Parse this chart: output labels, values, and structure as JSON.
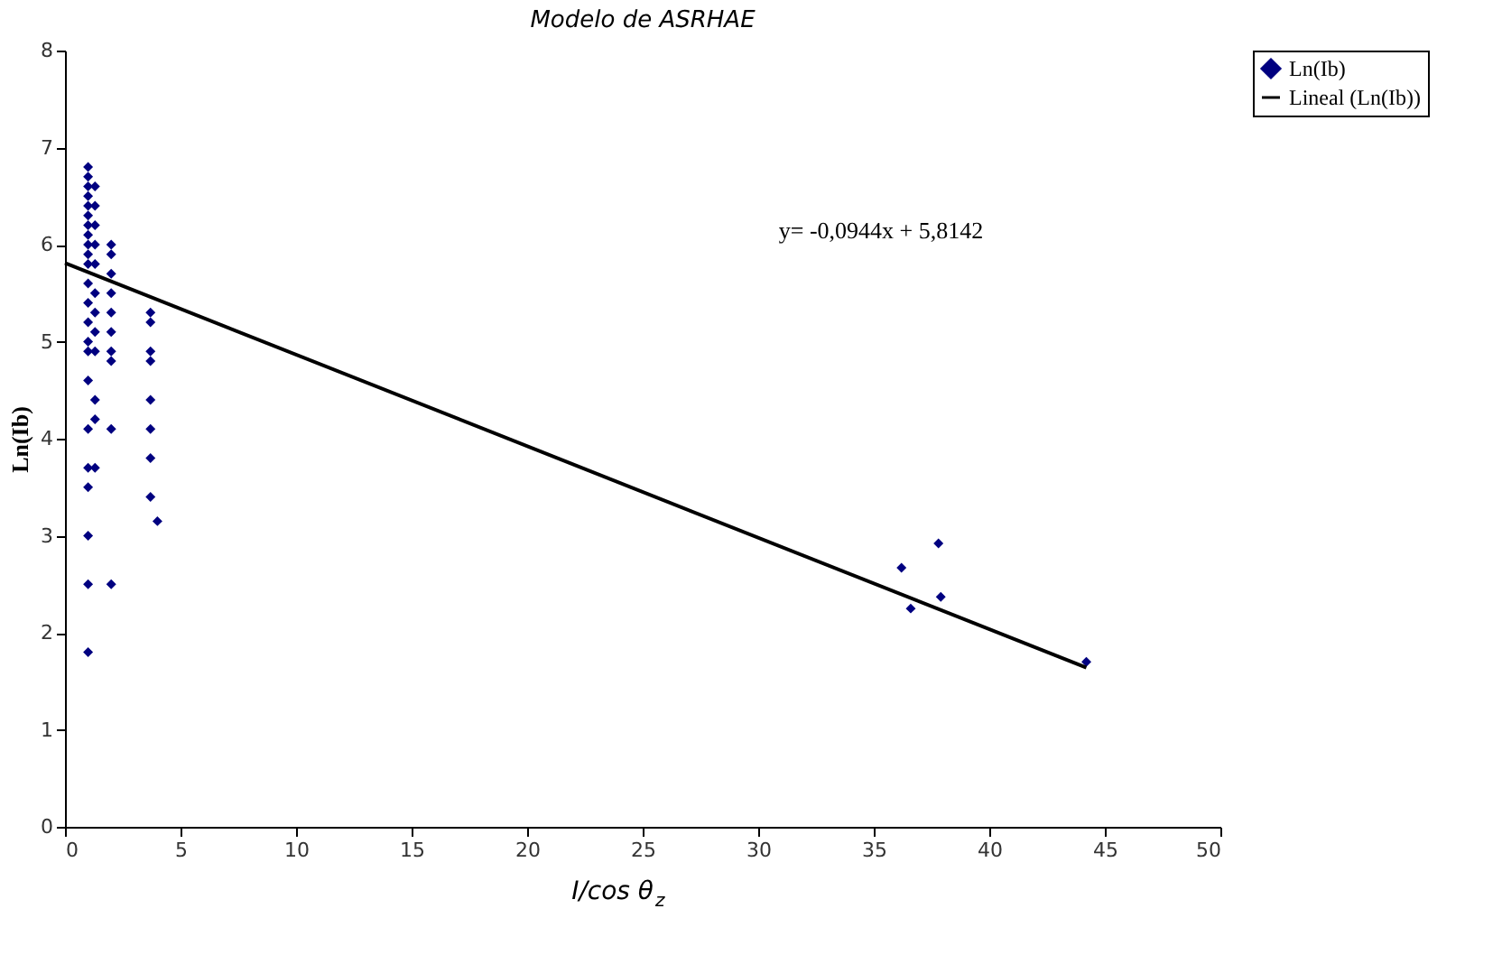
{
  "chart_data": {
    "type": "scatter",
    "title": "Modelo de ASRHAE",
    "xlabel": "I/cos θ$_{z}$",
    "ylabel": "Ln(Ib)",
    "xlim": [
      0,
      50
    ],
    "xticks": [
      0,
      5,
      10,
      15,
      20,
      25,
      30,
      35,
      40,
      45,
      50
    ],
    "ylim": [
      0,
      8
    ],
    "yticks": [
      0,
      1,
      2,
      3,
      4,
      5,
      6,
      7,
      8
    ],
    "grid": false,
    "legend": "right",
    "annotations": [
      "y= -0,0944x + 5,8142"
    ],
    "series": [
      {
        "name": "Ln(Ib)",
        "color": "#000080",
        "marker": "diamond",
        "x": [
          1.0,
          1.0,
          1.0,
          1.0,
          1.0,
          1.0,
          1.0,
          1.0,
          1.0,
          1.0,
          1.0,
          1.0,
          1.0,
          1.0,
          1.0,
          1.0,
          1.0,
          1.0,
          1.0,
          1.0,
          1.0,
          1.0,
          1.0,
          1.3,
          1.3,
          1.3,
          1.3,
          1.3,
          1.3,
          1.3,
          1.3,
          1.3,
          1.3,
          1.3,
          1.3,
          2.0,
          2.0,
          2.0,
          2.0,
          2.0,
          2.0,
          2.0,
          2.0,
          2.0,
          2.0,
          3.7,
          3.7,
          3.7,
          3.7,
          3.7,
          3.7,
          3.7,
          3.7,
          4.0,
          36.2,
          36.6,
          37.8,
          37.9,
          44.2
        ],
        "values": [
          6.8,
          6.7,
          6.6,
          6.5,
          6.4,
          6.3,
          6.2,
          6.1,
          6.0,
          5.9,
          5.8,
          5.6,
          5.4,
          5.2,
          5.0,
          4.9,
          4.6,
          4.1,
          3.7,
          3.5,
          3.0,
          2.5,
          1.8,
          6.6,
          6.4,
          6.2,
          6.0,
          5.8,
          5.5,
          5.3,
          5.1,
          4.9,
          4.4,
          4.2,
          3.7,
          6.0,
          5.9,
          5.7,
          5.5,
          5.3,
          5.1,
          4.9,
          4.8,
          4.1,
          2.5,
          5.3,
          5.2,
          4.9,
          4.8,
          4.4,
          4.1,
          3.8,
          3.4,
          3.15,
          2.67,
          2.25,
          2.92,
          2.37,
          1.7
        ]
      },
      {
        "name": "Lineal (Ln(Ib))",
        "color": "#000000",
        "type": "line",
        "marker": "none",
        "x": [
          0,
          44.2
        ],
        "values": [
          5.81,
          1.64
        ]
      }
    ]
  }
}
